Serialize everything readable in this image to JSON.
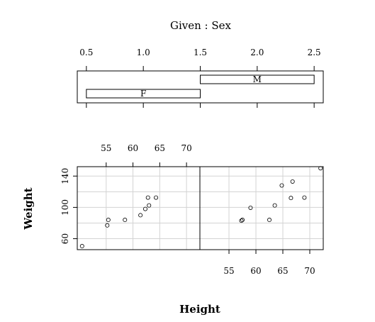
{
  "chart_data": {
    "type": "scatter",
    "title": "Given : Sex",
    "xlabel": "Height",
    "ylabel": "Weight",
    "given": {
      "variable": "Sex",
      "axis_range": [
        0.42,
        2.58
      ],
      "ticks": [
        0.5,
        1.0,
        1.5,
        2.0,
        2.5
      ],
      "tick_labels": [
        "0.5",
        "1.0",
        "1.5",
        "2.0",
        "2.5"
      ],
      "levels": [
        {
          "label": "F",
          "from": 0.5,
          "to": 1.5
        },
        {
          "label": "M",
          "from": 1.5,
          "to": 2.5
        }
      ]
    },
    "xlim": [
      49.6,
      72.5
    ],
    "ylim": [
      46,
      152
    ],
    "xticks": [
      55,
      60,
      65,
      70
    ],
    "xtick_labels": [
      "55",
      "60",
      "65",
      "70"
    ],
    "yticks": [
      60,
      100,
      140
    ],
    "ytick_labels": [
      "60",
      "100",
      "140"
    ],
    "panels": [
      {
        "level": "F",
        "points": [
          {
            "x": 50.5,
            "y": 50.5
          },
          {
            "x": 55.2,
            "y": 77.0
          },
          {
            "x": 55.4,
            "y": 84.0
          },
          {
            "x": 58.5,
            "y": 84.0
          },
          {
            "x": 61.4,
            "y": 90.0
          },
          {
            "x": 62.3,
            "y": 98.0
          },
          {
            "x": 62.8,
            "y": 112.5
          },
          {
            "x": 63.0,
            "y": 102.5
          },
          {
            "x": 64.3,
            "y": 112.5
          }
        ]
      },
      {
        "level": "M",
        "points": [
          {
            "x": 57.3,
            "y": 83.0
          },
          {
            "x": 57.5,
            "y": 84.0
          },
          {
            "x": 59.0,
            "y": 99.5
          },
          {
            "x": 62.5,
            "y": 84.0
          },
          {
            "x": 63.5,
            "y": 102.5
          },
          {
            "x": 64.8,
            "y": 128.0
          },
          {
            "x": 66.5,
            "y": 112.0
          },
          {
            "x": 66.8,
            "y": 133.0
          },
          {
            "x": 69.0,
            "y": 112.5
          },
          {
            "x": 72.0,
            "y": 150.0
          }
        ]
      }
    ]
  }
}
